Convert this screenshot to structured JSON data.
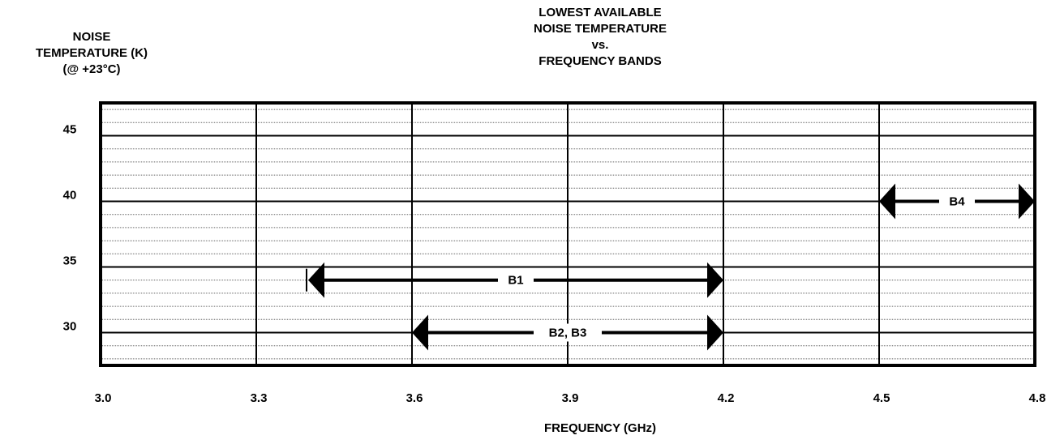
{
  "chart_data": {
    "type": "range",
    "title_lines": [
      "LOWEST AVAILABLE",
      "NOISE TEMPERATURE",
      "vs.",
      "FREQUENCY BANDS"
    ],
    "ylabel_lines": [
      "NOISE",
      "TEMPERATURE (K)",
      "(@ +23°C)"
    ],
    "xlabel": "FREQUENCY (GHz)",
    "x_ticks": [
      "3.0",
      "3.3",
      "3.6",
      "3.9",
      "4.2",
      "4.5",
      "4.8"
    ],
    "x_tick_values": [
      3.0,
      3.3,
      3.6,
      3.9,
      4.2,
      4.5,
      4.8
    ],
    "y_ticks": [
      "30",
      "35",
      "40",
      "45"
    ],
    "y_tick_values": [
      30,
      35,
      40,
      45
    ],
    "xlim": [
      3.0,
      4.8
    ],
    "ylim": [
      27.5,
      47.5
    ],
    "minor_y_step": 1,
    "grid": true,
    "bands": [
      {
        "name": "B1",
        "x_start": 3.4,
        "x_end": 4.2,
        "y": 34,
        "start_marker": "bar"
      },
      {
        "name": "B2, B3",
        "x_start": 3.6,
        "x_end": 4.2,
        "y": 30
      },
      {
        "name": "B4",
        "x_start": 4.5,
        "x_end": 4.8,
        "y": 40
      }
    ]
  }
}
